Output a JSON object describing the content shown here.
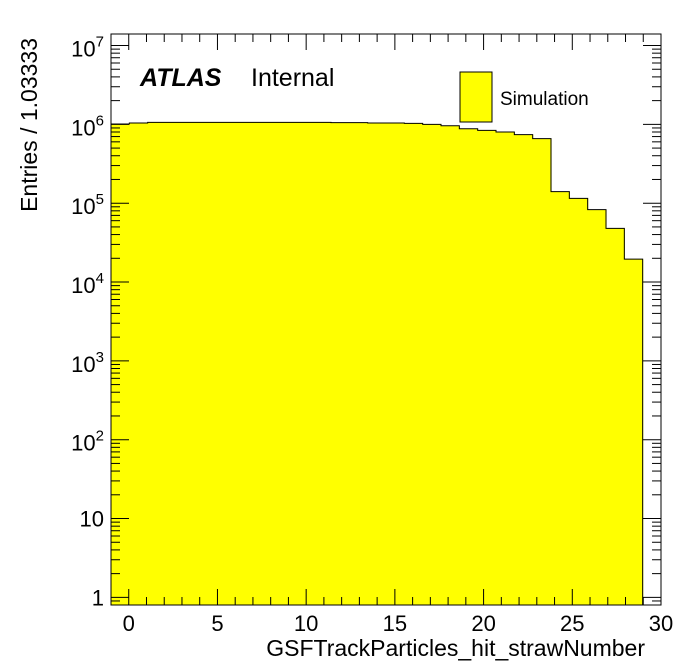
{
  "chart_data": {
    "type": "bar",
    "histogram": true,
    "fill_color": "#ffff00",
    "line_color": "#000000",
    "xlabel": "GSFTrackParticles_hit_strawNumber",
    "ylabel": "Entries / 1.03333",
    "xlim": [
      -1,
      30
    ],
    "ylim": [
      0.8,
      14000000
    ],
    "yscale": "log",
    "x_ticks": [
      0,
      5,
      10,
      15,
      20,
      25,
      30
    ],
    "y_ticks": [
      {
        "value": 1,
        "base": "1",
        "exp": ""
      },
      {
        "value": 10,
        "base": "10",
        "exp": ""
      },
      {
        "value": 100,
        "base": "10",
        "exp": "2"
      },
      {
        "value": 1000,
        "base": "10",
        "exp": "3"
      },
      {
        "value": 10000,
        "base": "10",
        "exp": "4"
      },
      {
        "value": 100000,
        "base": "10",
        "exp": "5"
      },
      {
        "value": 1000000,
        "base": "10",
        "exp": "6"
      },
      {
        "value": 10000000,
        "base": "10",
        "exp": "7"
      }
    ],
    "bin_edges": [
      -1,
      0.03333,
      1.06667,
      2.1,
      3.13333,
      4.16667,
      5.2,
      6.23333,
      7.26667,
      8.3,
      9.33333,
      10.36667,
      11.4,
      12.43333,
      13.46667,
      14.5,
      15.53333,
      16.56667,
      17.6,
      18.63333,
      19.66667,
      20.7,
      21.73333,
      22.76667,
      23.8,
      24.83333,
      25.86667,
      26.9,
      27.93333,
      28.96667
    ],
    "values": [
      1010000,
      1040000,
      1060000,
      1060000,
      1060000,
      1060000,
      1060000,
      1060000,
      1060000,
      1060000,
      1060000,
      1060000,
      1050000,
      1050000,
      1040000,
      1040000,
      1030000,
      1000000,
      960000,
      880000,
      840000,
      800000,
      740000,
      660000,
      140000,
      115000,
      83000,
      48000,
      19500
    ],
    "legend": {
      "position": "top-right",
      "entries": [
        "Simulation"
      ]
    },
    "annotation": {
      "bold_text": "ATLAS",
      "text": "Internal"
    }
  }
}
